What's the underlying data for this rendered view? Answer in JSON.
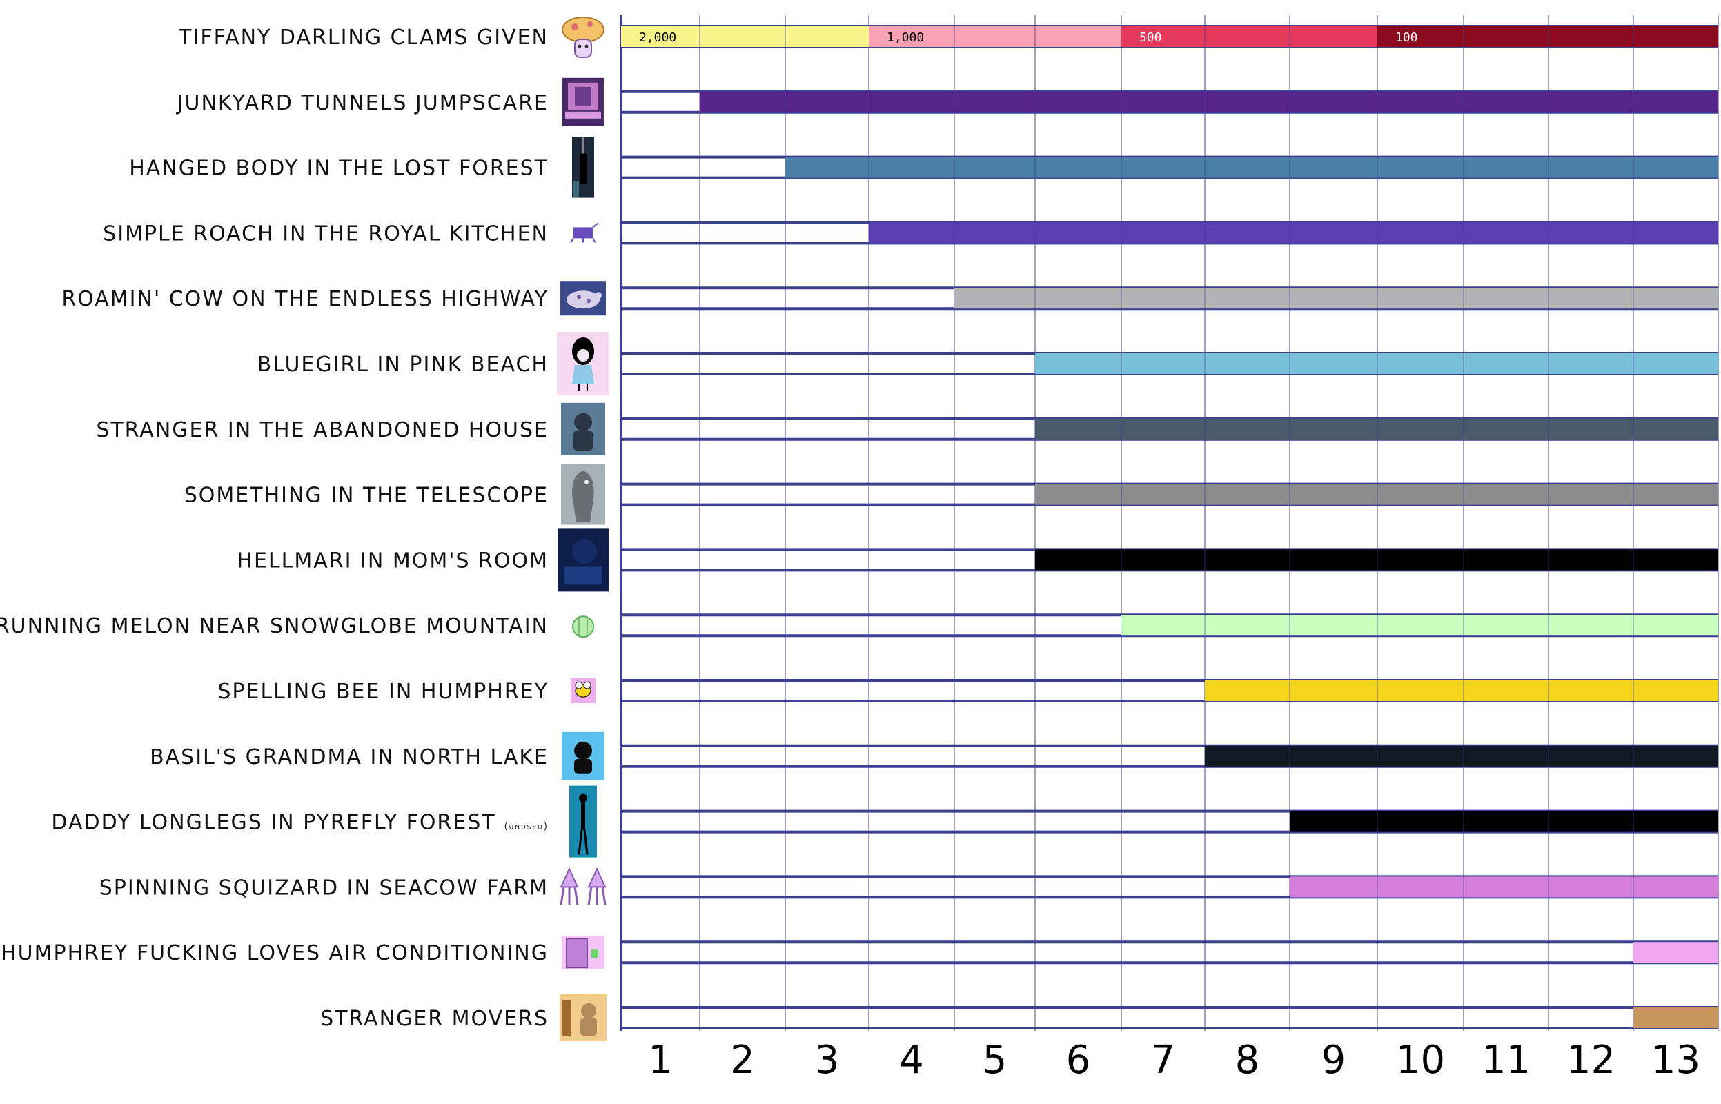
{
  "chart_data": {
    "type": "timeline",
    "title": "",
    "xlabel": "",
    "ylabel": "",
    "x_ticks": [
      1,
      2,
      3,
      4,
      5,
      6,
      7,
      8,
      9,
      10,
      11,
      12,
      13
    ],
    "xlim": [
      0.5,
      13.5
    ],
    "grid": true,
    "rows": [
      {
        "label": "TIFFANY DARLING CLAMS GIVEN",
        "note": "",
        "start": null,
        "end": 13,
        "color": "",
        "icon": "tiffany-mushroom-icon"
      },
      {
        "label": "JUNKYARD TUNNELS JUMPSCARE",
        "note": "",
        "start": 2,
        "end": 13,
        "color": "#57248a",
        "icon": "junkyard-shrine-icon"
      },
      {
        "label": "HANGED BODY IN THE LOST FOREST",
        "note": "",
        "start": 3,
        "end": 13,
        "color": "#4a7fa8",
        "icon": "hanged-body-icon"
      },
      {
        "label": "SIMPLE ROACH IN THE ROYAL KITCHEN",
        "note": "",
        "start": 4,
        "end": 13,
        "color": "#5b3fb0",
        "icon": "roach-icon"
      },
      {
        "label": "ROAMIN' COW ON THE ENDLESS HIGHWAY",
        "note": "",
        "start": 5,
        "end": 13,
        "color": "#b3b3b6",
        "icon": "cow-icon"
      },
      {
        "label": "BLUEGIRL IN PINK BEACH",
        "note": "",
        "start": 6,
        "end": 13,
        "color": "#78bfd8",
        "icon": "bluegirl-icon"
      },
      {
        "label": "STRANGER IN THE ABANDONED HOUSE",
        "note": "",
        "start": 6,
        "end": 13,
        "color": "#4b5a6b",
        "icon": "stranger-icon"
      },
      {
        "label": "SOMETHING IN THE TELESCOPE",
        "note": "",
        "start": 6,
        "end": 13,
        "color": "#8c8c8c",
        "icon": "telescope-ghost-icon"
      },
      {
        "label": "HELLMARI IN MOM'S ROOM",
        "note": "",
        "start": 6,
        "end": 13,
        "color": "#000000",
        "icon": "hellmari-icon"
      },
      {
        "label": "RUNNING MELON NEAR SNOWGLOBE MOUNTAIN",
        "note": "",
        "start": 7,
        "end": 13,
        "color": "#c8ffbe",
        "icon": "melon-icon"
      },
      {
        "label": "SPELLING BEE IN HUMPHREY",
        "note": "",
        "start": 8,
        "end": 13,
        "color": "#f5d51c",
        "icon": "bee-icon"
      },
      {
        "label": "BASIL'S GRANDMA IN NORTH LAKE",
        "note": "",
        "start": 8,
        "end": 13,
        "color": "#111a22",
        "icon": "grandma-icon"
      },
      {
        "label": "DADDY LONGLEGS IN PYREFLY FOREST",
        "note": "(unused)",
        "start": 9,
        "end": 13,
        "color": "#000000",
        "icon": "daddy-longlegs-icon"
      },
      {
        "label": "SPINNING SQUIZARD IN SEACOW FARM",
        "note": "",
        "start": 9,
        "end": 13,
        "color": "#d57fdb",
        "icon": "squizard-icon"
      },
      {
        "label": "HUMPHREY FUCKING LOVES AIR CONDITIONING",
        "note": "",
        "start": 13,
        "end": 13,
        "color": "#f0a7f0",
        "icon": "humphrey-door-icon"
      },
      {
        "label": "STRANGER MOVERS",
        "note": "",
        "start": 13,
        "end": 13,
        "color": "#c8955a",
        "icon": "stranger-movers-icon"
      }
    ],
    "clams_segments": [
      {
        "label": "2,000",
        "start": 1,
        "end": 3,
        "color": "#f9f48a"
      },
      {
        "label": "1,000",
        "start": 4,
        "end": 6,
        "color": "#f9a0b3"
      },
      {
        "label": "500",
        "start": 7,
        "end": 9,
        "color": "#e53a5b"
      },
      {
        "label": "100",
        "start": 10,
        "end": 13,
        "color": "#8c0a1d"
      }
    ],
    "clams_label_colors": [
      "#000000",
      "#000000",
      "#ffffff",
      "#ffffff"
    ],
    "grid_color": "#3d3f8f"
  }
}
